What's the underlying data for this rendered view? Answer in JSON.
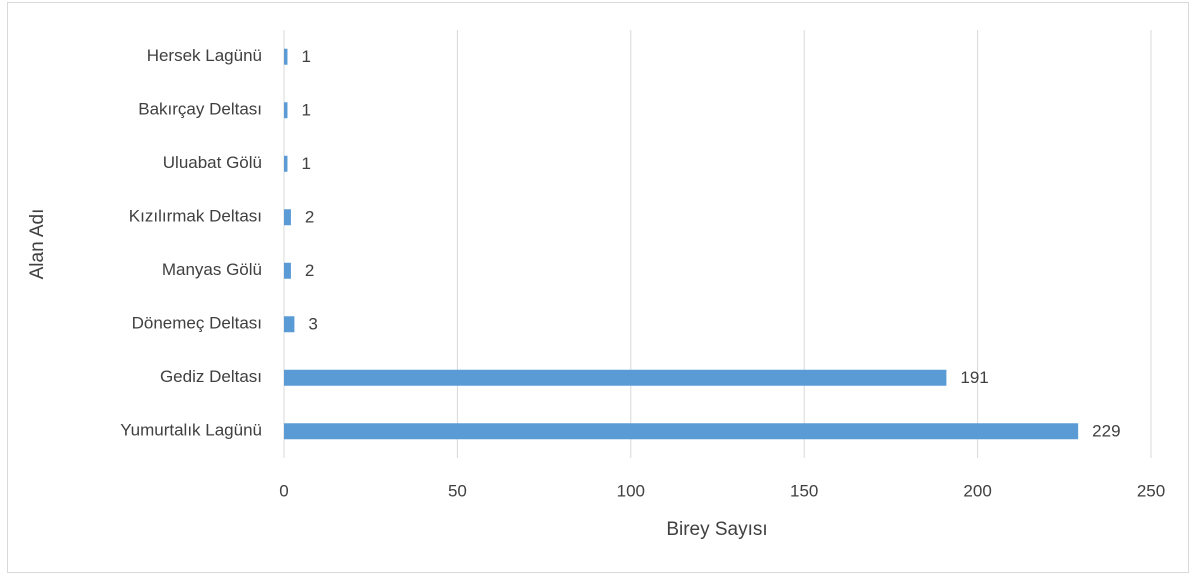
{
  "chart_data": {
    "type": "bar",
    "orientation": "horizontal",
    "categories": [
      "Hersek Lagünü",
      "Bakırçay Deltası",
      "Uluabat Gölü",
      "Kızılırmak Deltası",
      "Manyas Gölü",
      "Dönemeç Deltası",
      "Gediz Deltası",
      "Yumurtalık Lagünü"
    ],
    "values": [
      1,
      1,
      1,
      2,
      2,
      3,
      191,
      229
    ],
    "color": "#5b9bd5",
    "x_label": "Birey Sayısı",
    "y_label": "Alan Adı",
    "xlim": [
      0,
      250
    ],
    "xticks": [
      0,
      50,
      100,
      150,
      200,
      250
    ],
    "grid": true
  }
}
